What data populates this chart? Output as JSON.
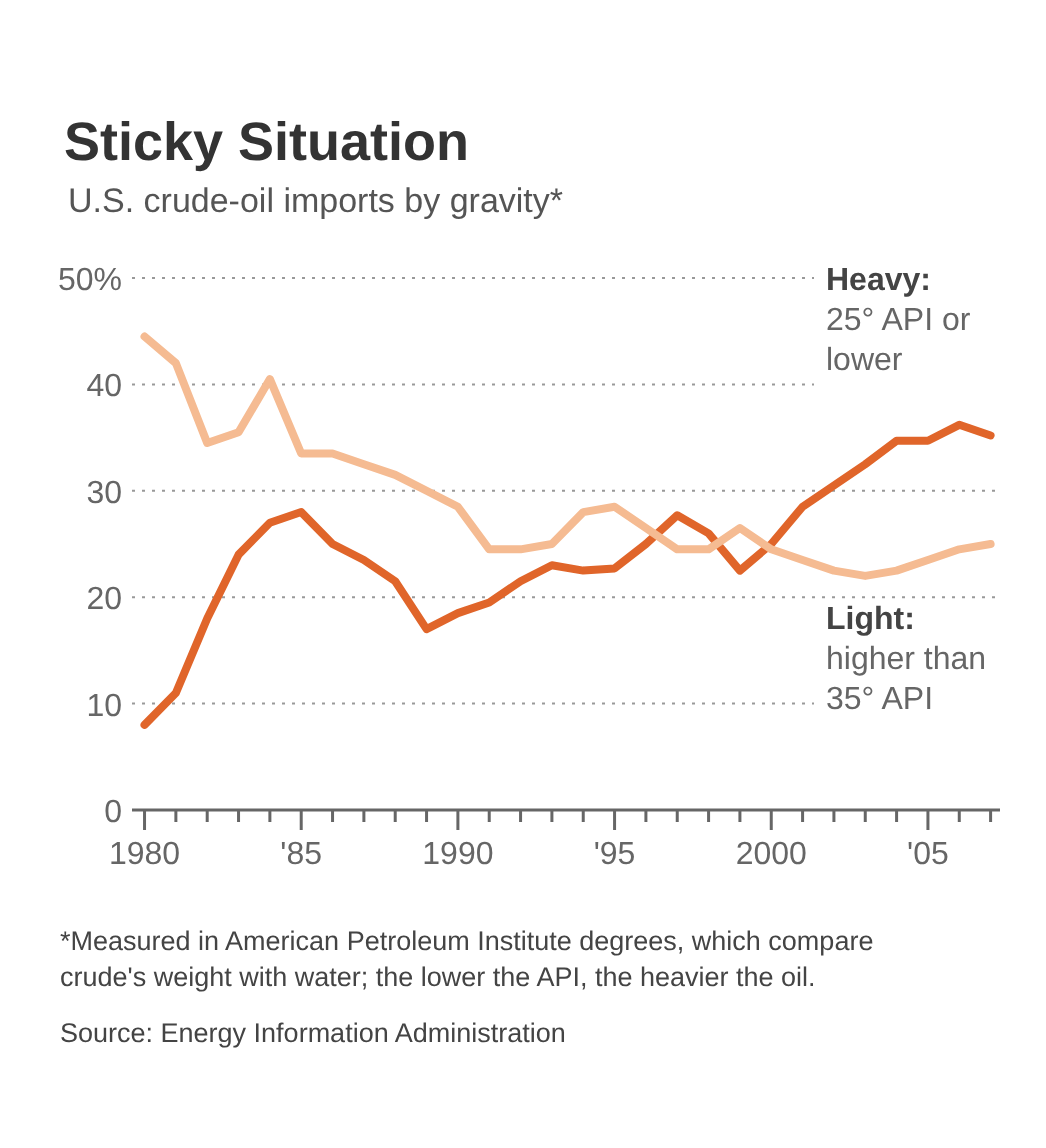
{
  "chart_data": {
    "type": "line",
    "title": "Sticky Situation",
    "subtitle": "U.S. crude-oil imports by gravity*",
    "x": [
      1980,
      1981,
      1982,
      1983,
      1984,
      1985,
      1986,
      1987,
      1988,
      1989,
      1990,
      1991,
      1992,
      1993,
      1994,
      1995,
      1996,
      1997,
      1998,
      1999,
      2000,
      2001,
      2002,
      2003,
      2004,
      2005,
      2006,
      2007
    ],
    "series": [
      {
        "name": "Heavy: 25° API or lower",
        "color": "#e0652a",
        "values": [
          8,
          11,
          18,
          24,
          27,
          28,
          25,
          23.5,
          21.5,
          17,
          18.5,
          19.5,
          21.5,
          23,
          22.5,
          22.7,
          25,
          27.7,
          26,
          22.5,
          25,
          28.5,
          30.5,
          32.5,
          34.7,
          34.7,
          36.2,
          35.2
        ]
      },
      {
        "name": "Light: higher than 35° API",
        "color": "#f5bb92",
        "values": [
          44.5,
          42,
          34.5,
          35.5,
          40.5,
          33.5,
          33.5,
          32.5,
          31.5,
          30,
          28.5,
          24.5,
          24.5,
          25,
          28,
          28.5,
          26.5,
          24.5,
          24.5,
          26.5,
          24.5,
          23.5,
          22.5,
          22,
          22.5,
          23.5,
          24.5,
          25
        ]
      }
    ],
    "xlim": [
      1979.6,
      2007.3
    ],
    "xticks": [
      {
        "value": 1980,
        "label": "1980"
      },
      {
        "value": 1981,
        "label": null
      },
      {
        "value": 1982,
        "label": null
      },
      {
        "value": 1983,
        "label": null
      },
      {
        "value": 1984,
        "label": null
      },
      {
        "value": 1985,
        "label": "'85"
      },
      {
        "value": 1986,
        "label": null
      },
      {
        "value": 1987,
        "label": null
      },
      {
        "value": 1988,
        "label": null
      },
      {
        "value": 1989,
        "label": null
      },
      {
        "value": 1990,
        "label": "1990"
      },
      {
        "value": 1991,
        "label": null
      },
      {
        "value": 1992,
        "label": null
      },
      {
        "value": 1993,
        "label": null
      },
      {
        "value": 1994,
        "label": null
      },
      {
        "value": 1995,
        "label": "'95"
      },
      {
        "value": 1996,
        "label": null
      },
      {
        "value": 1997,
        "label": null
      },
      {
        "value": 1998,
        "label": null
      },
      {
        "value": 1999,
        "label": null
      },
      {
        "value": 2000,
        "label": "2000"
      },
      {
        "value": 2001,
        "label": null
      },
      {
        "value": 2002,
        "label": null
      },
      {
        "value": 2003,
        "label": null
      },
      {
        "value": 2004,
        "label": null
      },
      {
        "value": 2005,
        "label": "'05"
      },
      {
        "value": 2006,
        "label": null
      },
      {
        "value": 2007,
        "label": null
      }
    ],
    "ylim": [
      0,
      50
    ],
    "yticks": [
      0,
      10,
      20,
      30,
      40,
      {
        "value": 50,
        "label": "50%"
      }
    ],
    "grid": "y",
    "annotations": [
      "*Measured in American Petroleum Institute degrees, which compare crude's weight with water; the lower the API, the heavier the oil.",
      "Source: Energy Information Administration"
    ]
  }
}
